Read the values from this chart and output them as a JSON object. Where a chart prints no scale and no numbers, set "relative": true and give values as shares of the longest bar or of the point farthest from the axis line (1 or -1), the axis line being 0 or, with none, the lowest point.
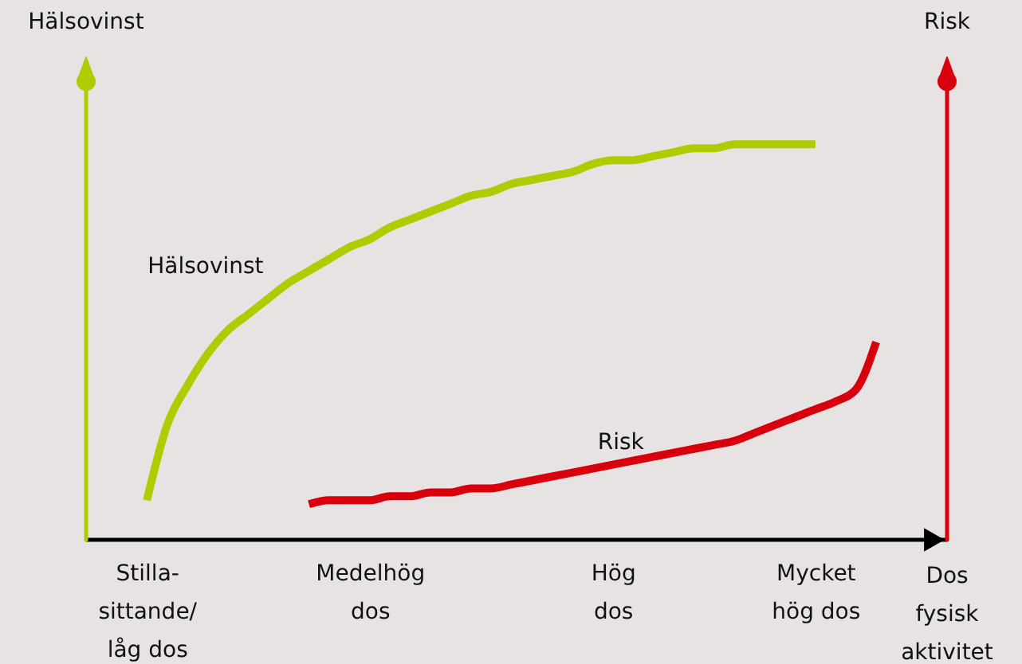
{
  "chart_data": {
    "type": "line",
    "relative": true,
    "ylabel": "Hälsovinst",
    "y2label": "Risk",
    "xlabel": "Dos fysisk aktivitet",
    "categories": [
      null,
      null,
      null,
      "Stilla-\nsittande/\nlåg dos",
      null,
      null,
      null,
      null,
      null,
      null,
      null,
      null,
      null,
      null,
      "Medelhög\ndos",
      null,
      null,
      null,
      null,
      null,
      null,
      null,
      null,
      null,
      null,
      null,
      "Hög\ndos",
      null,
      null,
      null,
      null,
      null,
      null,
      null,
      null,
      null,
      "Mycket\nhög dos",
      null,
      null,
      null,
      null,
      null,
      null
    ],
    "grid": false,
    "marker": "none",
    "line_style": "solid",
    "series": [
      {
        "name": "Hälsovinst",
        "color": "#b0cb00",
        "values": [
          null,
          null,
          null,
          0.1,
          0.29,
          0.39,
          0.47,
          0.53,
          0.57,
          0.61,
          0.65,
          0.68,
          0.71,
          0.74,
          0.76,
          0.79,
          0.81,
          0.83,
          0.85,
          0.87,
          0.88,
          0.9,
          0.91,
          0.92,
          0.93,
          0.95,
          0.96,
          0.96,
          0.97,
          0.98,
          0.99,
          0.99,
          1.0,
          1.0,
          1.0,
          1.0,
          1.0,
          null,
          null,
          null,
          null,
          null,
          null
        ]
      },
      {
        "name": "Risk",
        "color": "#d9000d",
        "axis": "y2",
        "values": [
          null,
          null,
          null,
          null,
          null,
          null,
          null,
          null,
          null,
          null,
          null,
          0.09,
          0.1,
          0.1,
          0.1,
          0.11,
          0.11,
          0.12,
          0.12,
          0.13,
          0.13,
          0.14,
          0.15,
          0.16,
          0.17,
          0.18,
          0.19,
          0.2,
          0.21,
          0.22,
          0.23,
          0.24,
          0.25,
          0.27,
          0.29,
          0.31,
          0.33,
          0.35,
          0.38,
          0.5,
          null,
          null,
          null
        ]
      }
    ]
  }
}
